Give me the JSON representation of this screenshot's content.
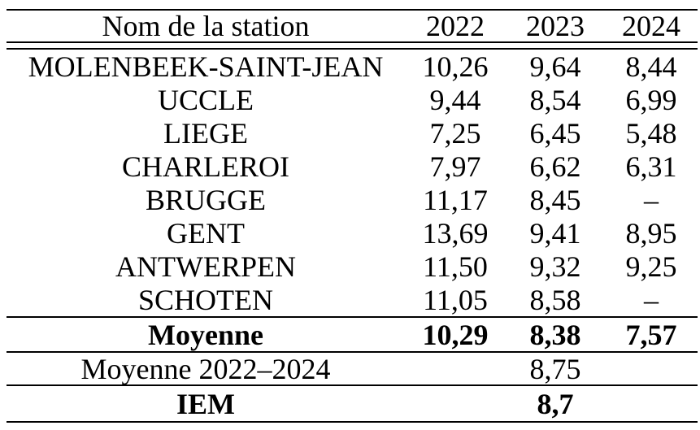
{
  "table": {
    "columns": [
      "Nom de la station",
      "2022",
      "2023",
      "2024"
    ],
    "rows": [
      {
        "name": "MOLENBEEK-SAINT-JEAN",
        "values": [
          "10,26",
          "9,64",
          "8,44"
        ]
      },
      {
        "name": "UCCLE",
        "values": [
          "9,44",
          "8,54",
          "6,99"
        ]
      },
      {
        "name": "LIEGE",
        "values": [
          "7,25",
          "6,45",
          "5,48"
        ]
      },
      {
        "name": "CHARLEROI",
        "values": [
          "7,97",
          "6,62",
          "6,31"
        ]
      },
      {
        "name": "BRUGGE",
        "values": [
          "11,17",
          "8,45",
          "–"
        ]
      },
      {
        "name": "GENT",
        "values": [
          "13,69",
          "9,41",
          "8,95"
        ]
      },
      {
        "name": "ANTWERPEN",
        "values": [
          "11,50",
          "9,32",
          "9,25"
        ]
      },
      {
        "name": "SCHOTEN",
        "values": [
          "11,05",
          "8,58",
          "–"
        ]
      }
    ],
    "summary": {
      "moyenne": {
        "label": "Moyenne",
        "values": [
          "10,29",
          "8,38",
          "7,57"
        ]
      },
      "overall_average": {
        "label": "Moyenne 2022–2024",
        "value": "8,75"
      },
      "iem": {
        "label": "IEM",
        "value": "8,7"
      }
    }
  },
  "colors": {
    "text": "#000000",
    "background": "#ffffff",
    "rule": "#000000"
  }
}
